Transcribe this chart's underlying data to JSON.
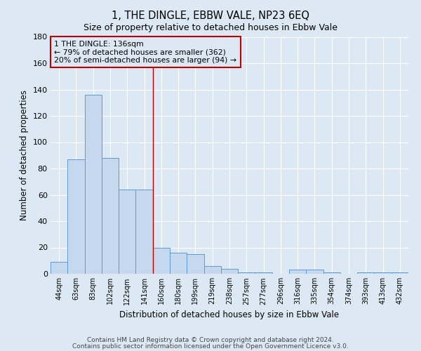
{
  "title": "1, THE DINGLE, EBBW VALE, NP23 6EQ",
  "subtitle": "Size of property relative to detached houses in Ebbw Vale",
  "xlabel": "Distribution of detached houses by size in Ebbw Vale",
  "ylabel": "Number of detached properties",
  "bar_labels": [
    "44sqm",
    "63sqm",
    "83sqm",
    "102sqm",
    "122sqm",
    "141sqm",
    "160sqm",
    "180sqm",
    "199sqm",
    "219sqm",
    "238sqm",
    "257sqm",
    "277sqm",
    "296sqm",
    "316sqm",
    "335sqm",
    "354sqm",
    "374sqm",
    "393sqm",
    "413sqm",
    "432sqm"
  ],
  "bar_values": [
    9,
    87,
    136,
    88,
    64,
    64,
    20,
    16,
    15,
    6,
    4,
    1,
    1,
    0,
    3,
    3,
    1,
    0,
    1,
    1,
    1
  ],
  "bar_color": "#c5d8ed",
  "bar_edge_color": "#5b9bd5",
  "vline_x": 5.5,
  "vline_color": "#c00000",
  "annotation_title": "1 THE DINGLE: 136sqm",
  "annotation_line1": "← 79% of detached houses are smaller (362)",
  "annotation_line2": "20% of semi-detached houses are larger (94) →",
  "annotation_box_color": "#c00000",
  "ylim": [
    0,
    180
  ],
  "yticks": [
    0,
    20,
    40,
    60,
    80,
    100,
    120,
    140,
    160,
    180
  ],
  "bg_color": "#dce9f5",
  "footer1": "Contains HM Land Registry data © Crown copyright and database right 2024.",
  "footer2": "Contains public sector information licensed under the Open Government Licence v3.0."
}
